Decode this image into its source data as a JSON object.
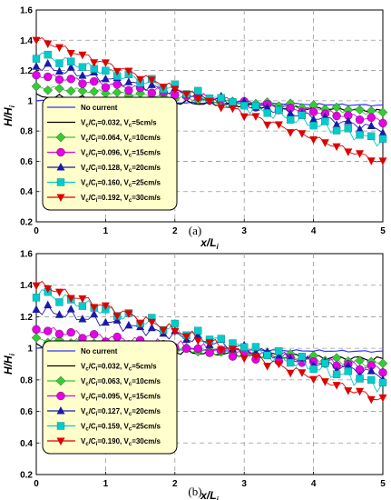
{
  "colors": {
    "no_current": "#3333ff",
    "series1": "#000000",
    "series2": "#33cc33",
    "series3": "#e600e6",
    "series4": "#1a1aaa",
    "series5": "#00cccc",
    "series6": "#dd0000",
    "legend_bg": "#ffffcc",
    "grid": "#9a9a9a"
  },
  "chart_data": [
    {
      "type": "line",
      "panel_label": "(a)",
      "xlabel": "x/L",
      "xlabel_sub": "i",
      "ylabel": "H/H",
      "ylabel_sub": "i",
      "xlim": [
        0,
        5
      ],
      "ylim": [
        0.2,
        1.6
      ],
      "x_ticks": [
        0,
        1,
        2,
        3,
        4,
        5
      ],
      "y_ticks": [
        0.2,
        0.4,
        0.6,
        0.8,
        1.0,
        1.2,
        1.4,
        1.6
      ],
      "y_tick_labels": [
        "0.2",
        "0.4",
        "0.6",
        "0.8",
        "1",
        "1.2",
        "1.4",
        "1.6"
      ],
      "grid": true,
      "legend_position": "bottom-left",
      "series": [
        {
          "name": "No current",
          "marker": "none",
          "start": 1.0,
          "end": 0.97,
          "noise": 0.004,
          "curve": 1.0
        },
        {
          "name": "V_c/C_i=0.032, V_c=5cm/s",
          "parts": [
            "V",
            "c",
            "/C",
            "i",
            "=0.032, V",
            "c",
            "=5cm/s"
          ],
          "marker": "none",
          "start": 1.03,
          "end": 0.93,
          "noise": 0.012,
          "curve": 1.0
        },
        {
          "name": "V_c/C_i=0.064, V_c=10cm/s",
          "parts": [
            "V",
            "c",
            "/C",
            "i",
            "=0.064, V",
            "c",
            "=10cm/s"
          ],
          "marker": "diamond",
          "start": 1.09,
          "end": 0.92,
          "noise": 0.012,
          "curve": 1.0
        },
        {
          "name": "V_c/C_i=0.096, V_c=15cm/s",
          "parts": [
            "V",
            "c",
            "/C",
            "i",
            "=0.096, V",
            "c",
            "=15cm/s"
          ],
          "marker": "circle",
          "start": 1.17,
          "end": 0.87,
          "noise": 0.015,
          "curve": 1.0
        },
        {
          "name": "V_c/C_i=0.128, V_c=20cm/s",
          "parts": [
            "V",
            "c",
            "/C",
            "i",
            "=0.128, V",
            "c",
            "=20cm/s"
          ],
          "marker": "triangle-up",
          "start": 1.23,
          "end": 0.81,
          "noise": 0.02,
          "curve": 1.0
        },
        {
          "name": "V_c/C_i=0.160, V_c=25cm/s",
          "parts": [
            "V",
            "c",
            "/C",
            "i",
            "=0.160, V",
            "c",
            "=25cm/s"
          ],
          "marker": "square",
          "start": 1.31,
          "end": 0.73,
          "noise": 0.025,
          "curve": 1.0
        },
        {
          "name": "V_c/C_i=0.192, V_c=30cm/s",
          "parts": [
            "V",
            "c",
            "/C",
            "i",
            "=0.192, V",
            "c",
            "=30cm/s"
          ],
          "marker": "triangle-down",
          "start": 1.41,
          "end": 0.59,
          "noise": 0.015,
          "curve": 1.0
        }
      ]
    },
    {
      "type": "line",
      "panel_label": "(b)",
      "xlabel": "x/L",
      "xlabel_sub": "i",
      "ylabel": "H/H",
      "ylabel_sub": "i",
      "xlim": [
        0,
        5
      ],
      "ylim": [
        0.2,
        1.6
      ],
      "x_ticks": [
        0,
        1,
        2,
        3,
        4,
        5
      ],
      "y_ticks": [
        0.2,
        0.4,
        0.6,
        0.8,
        1.0,
        1.2,
        1.4,
        1.6
      ],
      "y_tick_labels": [
        "0.2",
        "0.4",
        "0.6",
        "0.8",
        "1",
        "1.2",
        "1.4",
        "1.6"
      ],
      "grid": true,
      "legend_position": "bottom-left",
      "series": [
        {
          "name": "No current",
          "marker": "none",
          "start": 1.0,
          "end": 0.98,
          "noise": 0.004,
          "curve": 1.0
        },
        {
          "name": "V_c/C_i=0.032, V_c=5cm/s",
          "parts": [
            "V",
            "c",
            "/C",
            "i",
            "=0.032, V",
            "c",
            "=5cm/s"
          ],
          "marker": "none",
          "start": 1.01,
          "end": 0.93,
          "noise": 0.015,
          "curve": 1.0
        },
        {
          "name": "V_c/C_i=0.063, V_c=10cm/s",
          "parts": [
            "V",
            "c",
            "/C",
            "i",
            "=0.063, V",
            "c",
            "=10cm/s"
          ],
          "marker": "diamond",
          "start": 1.06,
          "end": 0.9,
          "noise": 0.015,
          "curve": 1.0
        },
        {
          "name": "V_c/C_i=0.095, V_c=15cm/s",
          "parts": [
            "V",
            "c",
            "/C",
            "i",
            "=0.095, V",
            "c",
            "=15cm/s"
          ],
          "marker": "circle",
          "start": 1.12,
          "end": 0.87,
          "noise": 0.02,
          "curve": 1.0
        },
        {
          "name": "V_c/C_i=0.127, V_c=20cm/s",
          "parts": [
            "V",
            "c",
            "/C",
            "i",
            "=0.127, V",
            "c",
            "=20cm/s"
          ],
          "marker": "triangle-up",
          "start": 1.25,
          "end": 0.83,
          "noise": 0.025,
          "curve": 1.0
        },
        {
          "name": "V_c/C_i=0.159, V_c=25cm/s",
          "parts": [
            "V",
            "c",
            "/C",
            "i",
            "=0.159, V",
            "c",
            "=25cm/s"
          ],
          "marker": "square",
          "start": 1.36,
          "end": 0.76,
          "noise": 0.03,
          "curve": 1.0
        },
        {
          "name": "V_c/C_i=0.190, V_c=30cm/s",
          "parts": [
            "V",
            "c",
            "/C",
            "i",
            "=0.190, V",
            "c",
            "=30cm/s"
          ],
          "marker": "triangle-down",
          "start": 1.41,
          "end": 0.67,
          "noise": 0.02,
          "curve": 1.0
        }
      ]
    }
  ]
}
